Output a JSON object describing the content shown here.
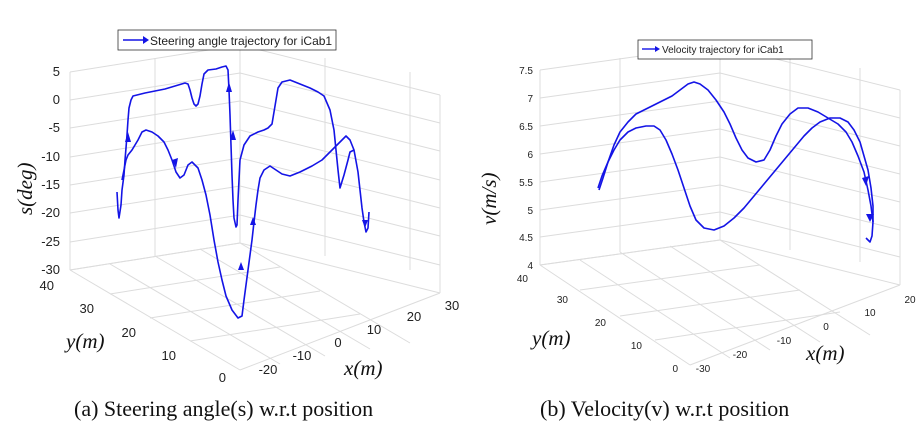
{
  "figure": {
    "caption_a": "(a) Steering angle(s) w.r.t position",
    "caption_b": "(b) Velocity(v) w.r.t position"
  },
  "chart_data": [
    {
      "type": "line",
      "subtype": "3d-line",
      "legend": "Steering angle trajectory for iCab1",
      "legend_position": "top",
      "zlabel": "s(deg)",
      "xlabel": "x(m)",
      "ylabel": "y(m)",
      "zlim": [
        -30,
        5
      ],
      "ztick_labels": [
        "5",
        "0",
        "-5",
        "-10",
        "-15",
        "-20",
        "-25",
        "-30"
      ],
      "xtick_labels": [
        "-20",
        "-10",
        "0",
        "10",
        "20",
        "30"
      ],
      "ytick_labels": [
        "40",
        "30",
        "20",
        "10",
        "0"
      ],
      "grid": true,
      "series": [
        {
          "x": [
            -25,
            -22,
            -18,
            -14,
            -10,
            -6,
            -4,
            -2,
            0,
            2,
            4,
            6,
            8,
            10,
            14,
            18,
            22,
            26,
            29,
            30
          ],
          "y": [
            0,
            2,
            4,
            6,
            8,
            10,
            11,
            12,
            14,
            16,
            18,
            20,
            22,
            24,
            27,
            30,
            33,
            36,
            38,
            40
          ],
          "z": [
            -20,
            -1,
            1,
            2,
            -4,
            3,
            3,
            -23,
            -24,
            -15,
            3,
            4,
            2,
            -5,
            -25,
            -14,
            -12,
            -17,
            -18,
            -20
          ]
        }
      ]
    },
    {
      "type": "line",
      "subtype": "3d-line",
      "legend": "Velocity trajectory for iCab1",
      "legend_position": "top",
      "zlabel": "v(m/s)",
      "xlabel": "x(m)",
      "ylabel": "y(m)",
      "zlim": [
        4,
        7.5
      ],
      "ztick_labels": [
        "7.5",
        "7",
        "6.5",
        "6",
        "5.5",
        "5",
        "4.5",
        "4"
      ],
      "xtick_labels": [
        "-30",
        "-20",
        "-10",
        "0",
        "10",
        "20"
      ],
      "ytick_labels": [
        "40",
        "30",
        "20",
        "10",
        "0"
      ],
      "grid": true,
      "series": [
        {
          "x": [
            -28,
            -24,
            -20,
            -16,
            -12,
            -8,
            -4,
            0,
            4,
            8,
            12,
            16,
            20,
            22,
            24,
            26,
            28,
            29,
            30
          ],
          "y": [
            0,
            3,
            6,
            9,
            12,
            14,
            16,
            18,
            20,
            22,
            24,
            26,
            28,
            30,
            32,
            34,
            36,
            38,
            40
          ],
          "z": [
            5.4,
            6.6,
            7.3,
            6.9,
            6.0,
            6.2,
            6.9,
            6.8,
            6.6,
            5.0,
            4.7,
            5.3,
            6.6,
            6.5,
            6.0,
            5.2,
            4.9,
            4.7,
            4.6
          ]
        }
      ]
    }
  ]
}
